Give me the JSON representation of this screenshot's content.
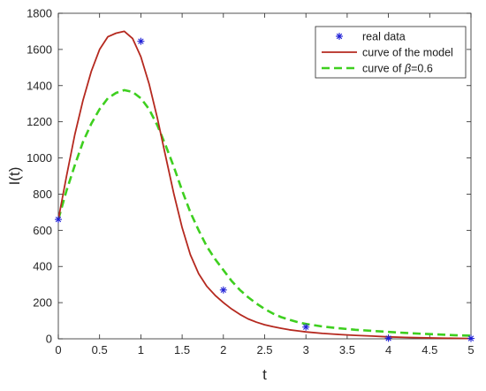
{
  "chart_data": {
    "type": "line",
    "xlabel": "t",
    "ylabel": "I(t)",
    "xlim": [
      0,
      5
    ],
    "ylim": [
      0,
      1800
    ],
    "x_ticks": [
      "0",
      "0.5",
      "1",
      "1.5",
      "2",
      "2.5",
      "3",
      "3.5",
      "4",
      "4.5",
      "5"
    ],
    "y_ticks": [
      "0",
      "200",
      "400",
      "600",
      "800",
      "1000",
      "1200",
      "1400",
      "1600",
      "1800"
    ],
    "grid": false,
    "legend_position": "top-right",
    "series": [
      {
        "name": "real data",
        "kind": "scatter",
        "marker": "asterisk",
        "color": "#1f1fd6",
        "x": [
          0,
          1,
          2,
          3,
          4,
          5
        ],
        "y": [
          660,
          1645,
          270,
          65,
          3,
          2
        ]
      },
      {
        "name": "curve of the model",
        "kind": "line",
        "style": "solid",
        "color": "#b5291f",
        "x": [
          0,
          0.1,
          0.2,
          0.3,
          0.4,
          0.5,
          0.6,
          0.7,
          0.8,
          0.9,
          1.0,
          1.1,
          1.2,
          1.3,
          1.4,
          1.5,
          1.6,
          1.7,
          1.8,
          1.9,
          2.0,
          2.1,
          2.2,
          2.3,
          2.4,
          2.5,
          2.6,
          2.7,
          2.8,
          2.9,
          3.0,
          3.2,
          3.4,
          3.6,
          3.8,
          4.0,
          4.2,
          4.4,
          4.6,
          4.8,
          5.0
        ],
        "y": [
          660,
          900,
          1130,
          1320,
          1480,
          1600,
          1670,
          1690,
          1700,
          1660,
          1560,
          1410,
          1220,
          1010,
          800,
          615,
          465,
          360,
          290,
          240,
          200,
          165,
          135,
          110,
          92,
          78,
          67,
          58,
          50,
          44,
          38,
          30,
          24,
          19,
          15,
          11,
          8,
          6,
          4,
          3,
          2
        ]
      },
      {
        "name": "curve of β=0.6",
        "name_prefix": "curve of ",
        "name_symbol": "β",
        "name_suffix": "=0.6",
        "kind": "line",
        "style": "dashed",
        "color": "#3ecf1f",
        "x": [
          0,
          0.1,
          0.2,
          0.3,
          0.4,
          0.5,
          0.6,
          0.7,
          0.8,
          0.9,
          1.0,
          1.1,
          1.2,
          1.3,
          1.4,
          1.5,
          1.6,
          1.7,
          1.8,
          1.9,
          2.0,
          2.1,
          2.2,
          2.3,
          2.4,
          2.5,
          2.6,
          2.7,
          2.8,
          2.9,
          3.0,
          3.2,
          3.4,
          3.6,
          3.8,
          4.0,
          4.2,
          4.4,
          4.6,
          4.8,
          5.0
        ],
        "y": [
          660,
          820,
          960,
          1090,
          1190,
          1270,
          1330,
          1360,
          1375,
          1365,
          1330,
          1270,
          1180,
          1070,
          950,
          820,
          700,
          600,
          510,
          440,
          380,
          320,
          270,
          230,
          195,
          165,
          140,
          120,
          105,
          92,
          82,
          68,
          58,
          50,
          44,
          38,
          33,
          28,
          24,
          20,
          17
        ]
      }
    ]
  }
}
